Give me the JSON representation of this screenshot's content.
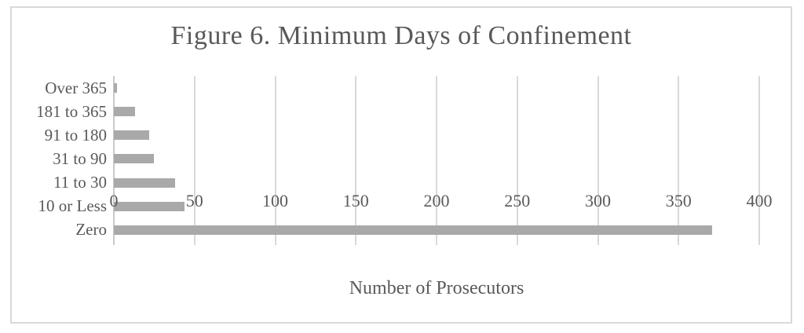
{
  "chart_data": {
    "type": "bar",
    "orientation": "horizontal",
    "title": "Figure 6. Minimum Days of Confinement",
    "xlabel": "Number of Prosecutors",
    "categories": [
      "Over 365",
      "181 to 365",
      "91 to 180",
      "31 to 90",
      "11 to 30",
      "10 or Less",
      "Zero"
    ],
    "values": [
      2,
      13,
      22,
      25,
      38,
      44,
      371
    ],
    "xlim": [
      0,
      400
    ],
    "xticks": [
      0,
      50,
      100,
      150,
      200,
      250,
      300,
      350,
      400
    ],
    "grid": true,
    "legend": false,
    "colors": {
      "bar": "#a9a9a9",
      "gridline": "#d9d9d9",
      "axis_text": "#595959",
      "frame_border": "#d9d9d9"
    }
  }
}
